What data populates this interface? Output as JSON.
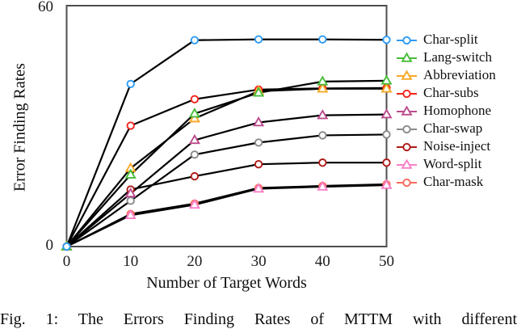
{
  "figure": {
    "caption": "Fig. 1: The Errors Finding Rates of MTTM with different"
  },
  "chart_data": {
    "type": "line",
    "title": "",
    "xlabel": "Number of Target Words",
    "ylabel": "Error Finding Rates",
    "xlim": [
      0,
      50
    ],
    "ylim": [
      0,
      60
    ],
    "xticks": [
      0,
      10,
      20,
      30,
      40,
      50
    ],
    "ytick_labels": [
      "60",
      "0"
    ],
    "grid": false,
    "legend_position": "right-outside",
    "line_color": "#000000",
    "axis_box_color": "#4d4d4d",
    "x": [
      0,
      10,
      20,
      30,
      40,
      50
    ],
    "series": [
      {
        "name": "Char-split",
        "marker": "circle",
        "color": "#2d9bf4",
        "values": [
          0,
          40.5,
          51.4,
          51.6,
          51.6,
          51.5
        ]
      },
      {
        "name": "Lang-switch",
        "marker": "triangle",
        "color": "#47bd38",
        "values": [
          0,
          17.9,
          33.1,
          38.3,
          41.1,
          41.3
        ]
      },
      {
        "name": "Abbreviation",
        "marker": "triangle",
        "color": "#f9a825",
        "values": [
          0,
          19.5,
          31.9,
          38.7,
          39.3,
          39.3
        ]
      },
      {
        "name": "Char-subs",
        "marker": "circle",
        "color": "#f3231b",
        "values": [
          0,
          30.1,
          36.7,
          39.1,
          39.4,
          39.5
        ]
      },
      {
        "name": "Homophone",
        "marker": "triangle",
        "color": "#bc4b8c",
        "values": [
          0,
          13.2,
          26.5,
          30.9,
          32.7,
          32.9
        ]
      },
      {
        "name": "Char-swap",
        "marker": "circle",
        "color": "#8a8a8a",
        "values": [
          0,
          11.4,
          22.9,
          25.9,
          27.7,
          27.9
        ]
      },
      {
        "name": "Noise-inject",
        "marker": "circle",
        "color": "#ae1a17",
        "values": [
          0,
          14.2,
          17.5,
          20.5,
          20.9,
          20.9
        ]
      },
      {
        "name": "Word-split",
        "marker": "triangle",
        "color": "#fa7fc8",
        "values": [
          0,
          7.8,
          10.4,
          14.4,
          14.9,
          15.3
        ]
      },
      {
        "name": "Char-mask",
        "marker": "circle",
        "color": "#f96a5b",
        "values": [
          0,
          8.1,
          10.7,
          14.6,
          15.1,
          15.5
        ]
      }
    ]
  }
}
